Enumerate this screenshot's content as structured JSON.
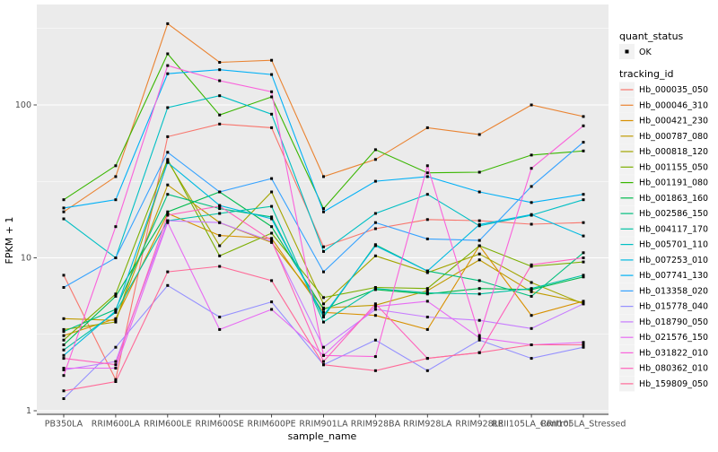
{
  "figure": {
    "bg": "#FFFFFF",
    "panel_bg": "#EBEBEB",
    "grid_color": "#FFFFFF",
    "legend_key_bg": "#F2F2F2",
    "tick_color": "#333333",
    "tick_label_color": "#4D4D4D",
    "marker_color": "#000000"
  },
  "chart_data": {
    "type": "line",
    "title": "",
    "xlabel": "sample_name",
    "ylabel": "FPKM + 1",
    "y_scale": "log10",
    "grid": true,
    "legend_position": "right",
    "ylim": [
      0.91,
      424
    ],
    "y_ticks": [
      1,
      10,
      100
    ],
    "y_tick_labels": [
      "1",
      "10",
      "100"
    ],
    "y_minor_ticks": [
      3.162,
      31.62,
      316.2
    ],
    "categories": [
      "PB350LA",
      "RRIM600LA",
      "RRIM600LE",
      "RRIM600SE",
      "RRIM600PE",
      "RRIM901LA",
      "RRIM928BA",
      "RRIM928LA",
      "RRIM928LE",
      "RRII105LA_Control",
      "RRII105LA_Stressed"
    ],
    "legend": {
      "quant_title": "quant_status",
      "quant_items": [
        {
          "label": "OK",
          "marker": "black-point"
        }
      ],
      "series_title": "tracking_id"
    },
    "series": [
      {
        "name": "Hb_000035_050",
        "color": "#F8766D",
        "values": [
          7.7,
          1.6,
          62,
          75,
          71,
          11.8,
          15.5,
          17.8,
          17.5,
          16.6,
          17
        ]
      },
      {
        "name": "Hb_000046_310",
        "color": "#EA8331",
        "values": [
          20,
          34,
          340,
          190,
          196,
          34,
          44,
          71,
          64,
          100,
          84
        ]
      },
      {
        "name": "Hb_000421_230",
        "color": "#D89000",
        "values": [
          3.1,
          4.0,
          19.5,
          14,
          13.4,
          4.4,
          4.2,
          3.4,
          12,
          4.2,
          5.2
        ]
      },
      {
        "name": "Hb_000787_080",
        "color": "#C09B00",
        "values": [
          4.0,
          3.9,
          30,
          17,
          12.6,
          4.7,
          4.9,
          6.1,
          9.7,
          6.0,
          5.1
        ]
      },
      {
        "name": "Hb_000818_120",
        "color": "#A3A500",
        "values": [
          3.4,
          3.8,
          43,
          12,
          27,
          5.0,
          10.3,
          8.0,
          10.6,
          6.9,
          5.0
        ]
      },
      {
        "name": "Hb_001155_050",
        "color": "#7CAE00",
        "values": [
          2.9,
          5.8,
          44,
          10.3,
          14.5,
          5.5,
          6.4,
          6.3,
          12.0,
          8.8,
          9.4
        ]
      },
      {
        "name": "Hb_001191_080",
        "color": "#39B600",
        "values": [
          24,
          40,
          216,
          86,
          113,
          21,
          51,
          36,
          36.3,
          47,
          50
        ]
      },
      {
        "name": "Hb_001863_160",
        "color": "#00BB4E",
        "values": [
          2.7,
          5.6,
          20,
          27,
          16,
          4.6,
          6.2,
          5.8,
          6.3,
          6.2,
          7.5
        ]
      },
      {
        "name": "Hb_002586_150",
        "color": "#00BF7D",
        "values": [
          3.3,
          4.6,
          26,
          21,
          18.5,
          4.1,
          12.2,
          8.2,
          7.1,
          5.6,
          10.8
        ]
      },
      {
        "name": "Hb_004117_170",
        "color": "#00C1A3",
        "values": [
          2.5,
          4.4,
          17.5,
          19.5,
          21.7,
          3.8,
          6.3,
          5.9,
          5.8,
          6.3,
          7.7
        ]
      },
      {
        "name": "Hb_005701_110",
        "color": "#00BFC4",
        "values": [
          18,
          10,
          96,
          115,
          87,
          11,
          19.5,
          26,
          16.2,
          19,
          24
        ]
      },
      {
        "name": "Hb_007253_010",
        "color": "#00BAE0",
        "values": [
          2.3,
          4.5,
          42,
          22,
          18,
          4.2,
          12,
          8.2,
          16.5,
          19.2,
          13.9
        ]
      },
      {
        "name": "Hb_007741_130",
        "color": "#00B0F6",
        "values": [
          21.2,
          24,
          160,
          170,
          158,
          20,
          31.7,
          34,
          27,
          23,
          26
        ]
      },
      {
        "name": "Hb_013358_020",
        "color": "#35A2FF",
        "values": [
          6.4,
          10,
          49,
          27,
          33,
          8.1,
          17,
          13.3,
          13,
          29.3,
          57
        ]
      },
      {
        "name": "Hb_015778_040",
        "color": "#9590FF",
        "values": [
          1.2,
          2.6,
          6.6,
          4.1,
          5.15,
          2.0,
          2.9,
          1.83,
          2.9,
          2.2,
          2.6
        ]
      },
      {
        "name": "Hb_018790_050",
        "color": "#C77CFF",
        "values": [
          1.85,
          2.1,
          17.5,
          17,
          12.8,
          2.6,
          4.6,
          4.1,
          3.9,
          3.45,
          5.0
        ]
      },
      {
        "name": "Hb_021576_150",
        "color": "#E76BF3",
        "values": [
          1.9,
          1.9,
          17,
          3.4,
          4.6,
          2.3,
          4.8,
          5.2,
          3.0,
          2.7,
          2.8
        ]
      },
      {
        "name": "Hb_031822_010",
        "color": "#FA62DB",
        "values": [
          1.7,
          16,
          181,
          144,
          122,
          2.3,
          2.26,
          40,
          3.1,
          38.5,
          73
        ]
      },
      {
        "name": "Hb_080362_010",
        "color": "#FF62BC",
        "values": [
          2.2,
          2.0,
          19,
          21.8,
          13,
          2.1,
          5.0,
          2.2,
          2.4,
          9.0,
          10
        ]
      },
      {
        "name": "Hb_159809_050",
        "color": "#FF6A98",
        "values": [
          1.35,
          1.55,
          8.1,
          8.8,
          7.1,
          2.0,
          1.83,
          2.2,
          2.4,
          2.7,
          2.7
        ]
      }
    ]
  }
}
